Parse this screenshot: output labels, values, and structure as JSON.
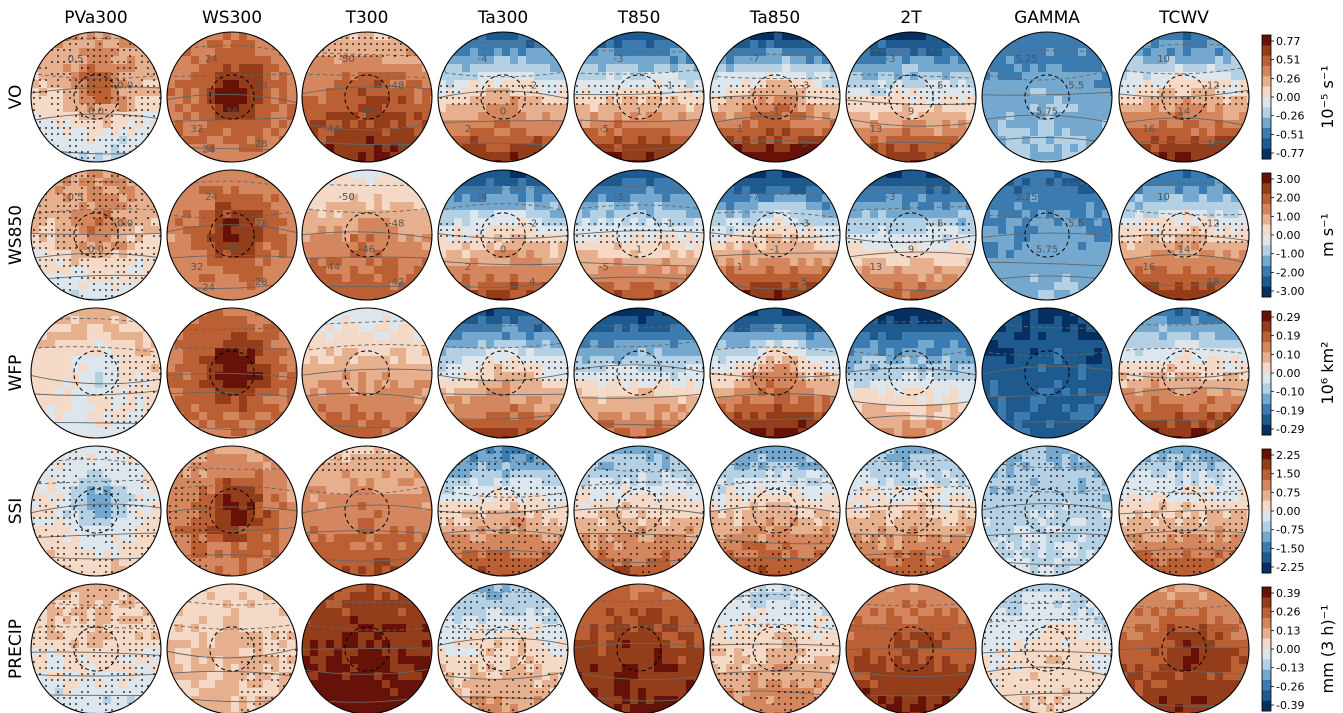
{
  "columns": [
    "PVa300",
    "WS300",
    "T300",
    "Ta300",
    "T850",
    "Ta850",
    "2T",
    "GAMMA",
    "TCWV"
  ],
  "rows": [
    {
      "label": "VO",
      "colorbar": {
        "ticks": [
          "0.77",
          "0.51",
          "0.26",
          "0.00",
          "-0.26",
          "-0.51",
          "-0.77"
        ],
        "unit": "10⁻⁵ s⁻¹"
      },
      "panels": [
        {
          "mean": 0.08,
          "gradient": -0.3,
          "core": 0.45,
          "stipple": "heavy"
        },
        {
          "mean": 0.45,
          "gradient": 0.0,
          "core": 0.5,
          "stipple": "none"
        },
        {
          "mean": 0.5,
          "gradient": 0.35,
          "core": 0.2,
          "stipple": "top"
        },
        {
          "mean": 0.05,
          "gradient": 0.8,
          "core": 0.2,
          "stipple": "band"
        },
        {
          "mean": 0.05,
          "gradient": 0.85,
          "core": 0.1,
          "stipple": "band"
        },
        {
          "mean": 0.05,
          "gradient": 0.95,
          "core": 0.35,
          "stipple": "band"
        },
        {
          "mean": -0.05,
          "gradient": 0.85,
          "core": 0.05,
          "stipple": "band"
        },
        {
          "mean": -0.45,
          "gradient": 0.15,
          "core": 0.1,
          "stipple": "none"
        },
        {
          "mean": 0.1,
          "gradient": 0.8,
          "core": 0.15,
          "stipple": "band"
        }
      ]
    },
    {
      "label": "WS850",
      "colorbar": {
        "ticks": [
          "3.00",
          "2.00",
          "1.00",
          "0.00",
          "-1.00",
          "-2.00",
          "-3.00"
        ],
        "unit": "m s⁻¹"
      },
      "panels": [
        {
          "mean": 0.12,
          "gradient": -0.25,
          "core": 0.35,
          "stipple": "heavy"
        },
        {
          "mean": 0.4,
          "gradient": 0.0,
          "core": 0.5,
          "stipple": "none"
        },
        {
          "mean": 0.3,
          "gradient": 0.35,
          "core": 0.15,
          "stipple": "none"
        },
        {
          "mean": -0.05,
          "gradient": 0.8,
          "core": 0.2,
          "stipple": "band"
        },
        {
          "mean": -0.05,
          "gradient": 0.75,
          "core": 0.05,
          "stipple": "band"
        },
        {
          "mean": -0.05,
          "gradient": 0.9,
          "core": 0.2,
          "stipple": "band"
        },
        {
          "mean": -0.15,
          "gradient": 0.75,
          "core": 0.05,
          "stipple": "band"
        },
        {
          "mean": -0.5,
          "gradient": 0.15,
          "core": 0.05,
          "stipple": "none"
        },
        {
          "mean": 0.05,
          "gradient": 0.75,
          "core": 0.15,
          "stipple": "band"
        }
      ]
    },
    {
      "label": "WFP",
      "colorbar": {
        "ticks": [
          "0.29",
          "0.19",
          "0.10",
          "0.00",
          "-0.10",
          "-0.19",
          "-0.29"
        ],
        "unit": "10⁶ km²"
      },
      "panels": [
        {
          "mean": 0.1,
          "gradient": -0.15,
          "core": -0.2,
          "stipple": "right"
        },
        {
          "mean": 0.5,
          "gradient": 0.0,
          "core": 0.45,
          "stipple": "none"
        },
        {
          "mean": 0.25,
          "gradient": 0.35,
          "core": 0.05,
          "stipple": "none"
        },
        {
          "mean": -0.05,
          "gradient": 0.8,
          "core": 0.25,
          "stipple": "band"
        },
        {
          "mean": -0.15,
          "gradient": 0.8,
          "core": 0.05,
          "stipple": "band"
        },
        {
          "mean": 0.0,
          "gradient": 0.95,
          "core": 0.45,
          "stipple": "band"
        },
        {
          "mean": -0.25,
          "gradient": 0.7,
          "core": 0.05,
          "stipple": "band"
        },
        {
          "mean": -0.75,
          "gradient": 0.1,
          "core": 0.05,
          "stipple": "none"
        },
        {
          "mean": 0.1,
          "gradient": 0.75,
          "core": 0.1,
          "stipple": "band"
        }
      ]
    },
    {
      "label": "SSI",
      "colorbar": {
        "ticks": [
          "2.25",
          "1.50",
          "0.75",
          "0.00",
          "-0.75",
          "-1.50",
          "-2.25"
        ],
        "unit": ""
      },
      "panels": [
        {
          "mean": 0.05,
          "gradient": 0.1,
          "core": -0.45,
          "stipple": "heavy"
        },
        {
          "mean": 0.4,
          "gradient": 0.1,
          "core": 0.5,
          "stipple": "left"
        },
        {
          "mean": 0.4,
          "gradient": 0.25,
          "core": 0.05,
          "stipple": "top"
        },
        {
          "mean": 0.05,
          "gradient": 0.65,
          "core": 0.15,
          "stipple": "heavy"
        },
        {
          "mean": 0.1,
          "gradient": 0.55,
          "core": 0.05,
          "stipple": "heavy"
        },
        {
          "mean": 0.1,
          "gradient": 0.6,
          "core": 0.15,
          "stipple": "heavy"
        },
        {
          "mean": 0.1,
          "gradient": 0.55,
          "core": 0.05,
          "stipple": "heavy"
        },
        {
          "mean": -0.25,
          "gradient": 0.1,
          "core": 0.05,
          "stipple": "heavy"
        },
        {
          "mean": 0.1,
          "gradient": 0.55,
          "core": 0.05,
          "stipple": "heavy"
        }
      ]
    },
    {
      "label": "PRECIP",
      "colorbar": {
        "ticks": [
          "0.39",
          "0.26",
          "0.13",
          "0.00",
          "-0.13",
          "-0.26",
          "-0.39"
        ],
        "unit": "mm (3 h)⁻¹"
      },
      "panels": [
        {
          "mean": 0.05,
          "gradient": -0.2,
          "core": 0.05,
          "stipple": "heavy"
        },
        {
          "mean": 0.15,
          "gradient": 0.05,
          "core": 0.1,
          "stipple": "right"
        },
        {
          "mean": 0.8,
          "gradient": 0.15,
          "core": 0.1,
          "stipple": "none"
        },
        {
          "mean": 0.0,
          "gradient": 0.35,
          "core": 0.15,
          "stipple": "heavy"
        },
        {
          "mean": 0.7,
          "gradient": 0.2,
          "core": 0.1,
          "stipple": "none"
        },
        {
          "mean": 0.1,
          "gradient": 0.35,
          "core": 0.1,
          "stipple": "heavy"
        },
        {
          "mean": 0.6,
          "gradient": 0.25,
          "core": 0.1,
          "stipple": "none"
        },
        {
          "mean": -0.05,
          "gradient": 0.2,
          "core": 0.15,
          "stipple": "heavy"
        },
        {
          "mean": 0.55,
          "gradient": 0.25,
          "core": 0.25,
          "stipple": "none"
        }
      ]
    }
  ],
  "contour_labels": {
    "PVa300": [
      "0.5",
      "0.0",
      "0.0"
    ],
    "WS300": [
      "24",
      "28",
      "36",
      "32",
      "28",
      "24"
    ],
    "T300": [
      "-50",
      "-48",
      "-46",
      "-44",
      "-42"
    ],
    "Ta300": [
      "-4",
      "-2",
      "0",
      "2",
      "4"
    ],
    "T850": [
      "-3",
      "-1",
      "1",
      "-5"
    ],
    "Ta850": [
      "-7",
      "-3",
      "-1",
      "1",
      "5"
    ],
    "2T": [
      "-3",
      "5",
      "9",
      "13"
    ],
    "GAMMA": [
      "5.25",
      "5.5",
      "5.75"
    ],
    "TCWV": [
      "10",
      "12",
      "14",
      "16",
      "18"
    ]
  },
  "chart_data": {
    "type": "heatmap",
    "columns": [
      "PVa300",
      "WS300",
      "T300",
      "Ta300",
      "T850",
      "Ta850",
      "2T",
      "GAMMA",
      "TCWV"
    ],
    "rows": [
      "VO",
      "WS850",
      "WFP",
      "SSI",
      "PRECIP"
    ],
    "colormap": "blue-white-red diverging",
    "row_units": [
      "10⁻⁵ s⁻¹",
      "m s⁻¹",
      "10⁶ km²",
      "",
      "mm (3 h)⁻¹"
    ],
    "row_limits": [
      [
        -0.77,
        0.77
      ],
      [
        -3.0,
        3.0
      ],
      [
        -0.29,
        0.29
      ],
      [
        -2.25,
        2.25
      ],
      [
        -0.39,
        0.39
      ]
    ]
  },
  "colors": {
    "scale": [
      "#053061",
      "#1f5a8f",
      "#3b7bb0",
      "#74a8cf",
      "#b4d0e4",
      "#dde6ec",
      "#f3d9c6",
      "#e6b08f",
      "#d4875f",
      "#bb5f34",
      "#933d1b",
      "#671209"
    ]
  }
}
